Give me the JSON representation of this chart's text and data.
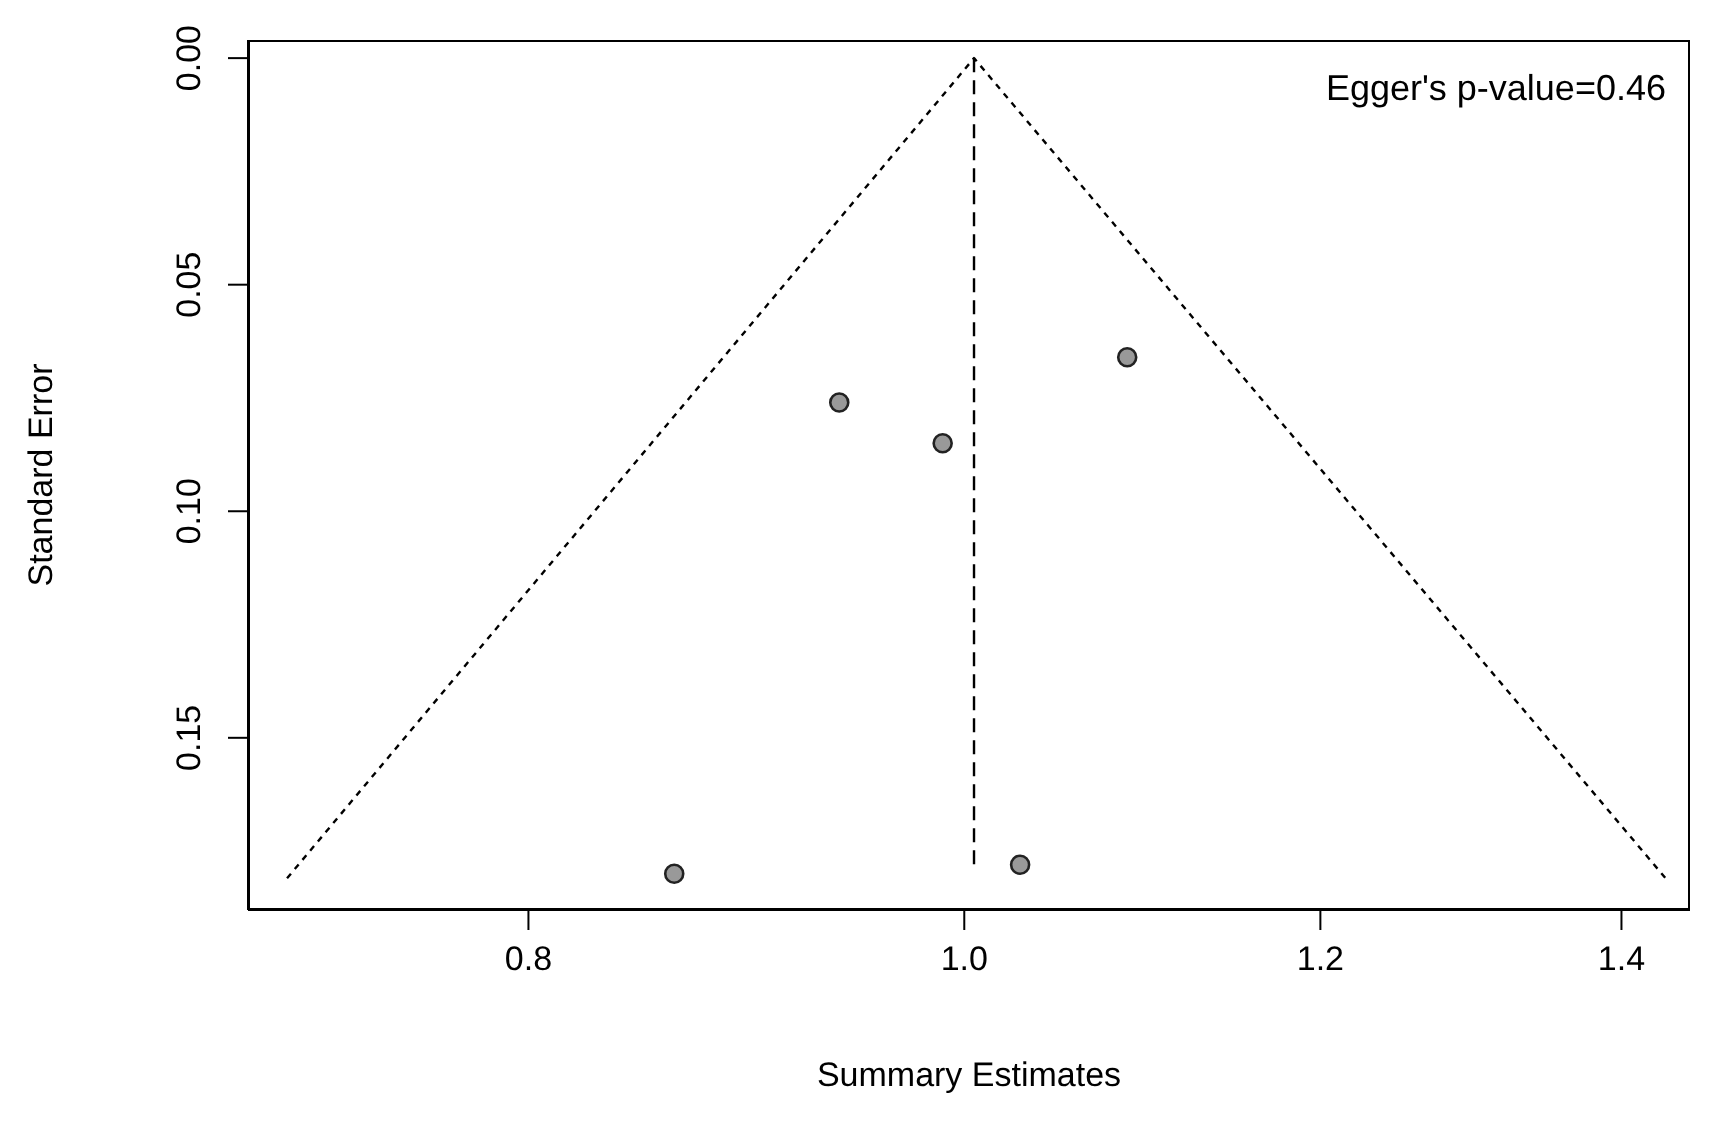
{
  "chart_data": {
    "type": "scatter",
    "xlabel": "Summary Estimates",
    "ylabel": "Standard Error",
    "log": "x",
    "xlim": [
      0.693,
      1.45
    ],
    "xticks": [
      0.8,
      {
        "value": 1,
        "label": "1.0"
      },
      1.2,
      1.4
    ],
    "ylim": [
      0.188,
      -0.004
    ],
    "yticks": [
      {
        "value": 0,
        "label": "0.00"
      },
      {
        "value": 0.05,
        "label": "0.05"
      },
      {
        "value": 0.1,
        "label": "0.10"
      },
      {
        "value": 0.15,
        "label": "0.15"
      }
    ],
    "annotations": [
      "Egger's p-value=0.46"
    ],
    "series": [
      {
        "type": "line",
        "color": "#000000",
        "line_style": "dotted",
        "marker": "none",
        "x": [
          0.707,
          1.005,
          1.432
        ],
        "values": [
          0.181,
          0,
          0.181
        ]
      },
      {
        "type": "line",
        "color": "#000000",
        "line_style": "dashed",
        "marker": "none",
        "x": [
          1.005,
          1.005
        ],
        "values": [
          0,
          0.178
        ]
      },
      {
        "color": "#999999",
        "marker": "circle",
        "x": [
          0.938,
          0.989,
          1.087,
          0.862,
          1.029
        ],
        "values": [
          0.076,
          0.085,
          0.066,
          0.18,
          0.178
        ]
      }
    ]
  }
}
